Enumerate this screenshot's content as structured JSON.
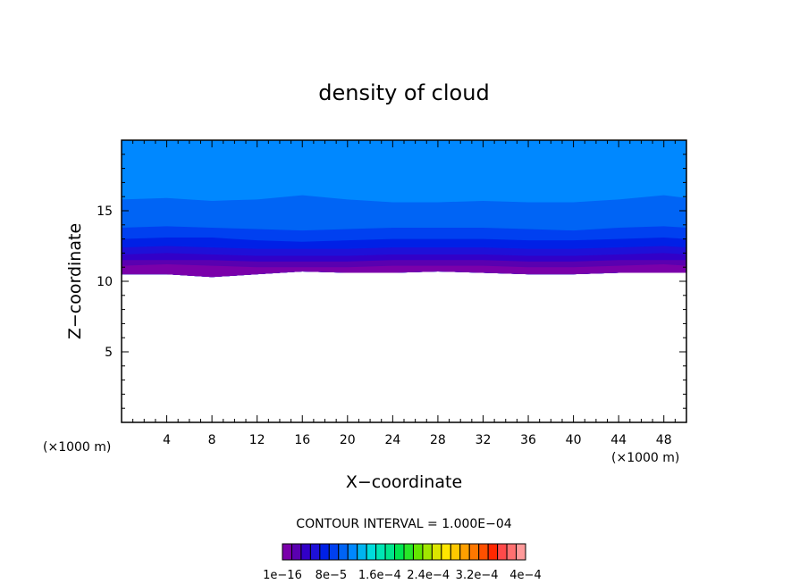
{
  "chart_data": {
    "type": "contour",
    "title": "density of cloud",
    "xlabel": "X−coordinate",
    "ylabel": "Z−coordinate",
    "x_unit": "(×1000 m)",
    "y_unit": "(×1000 m)",
    "xlim": [
      0,
      50
    ],
    "ylim": [
      0,
      20
    ],
    "x_ticks": [
      4,
      8,
      12,
      16,
      20,
      24,
      28,
      32,
      36,
      40,
      44,
      48
    ],
    "x_tick_labels": [
      "4",
      "8",
      "12",
      "16",
      "20",
      "24",
      "28",
      "32",
      "36",
      "40",
      "44",
      "48"
    ],
    "y_ticks": [
      5,
      10,
      15
    ],
    "y_tick_labels": [
      "5",
      "10",
      "15"
    ],
    "contour_interval_text": "CONTOUR INTERVAL = 1.000E−04",
    "colorbar": {
      "colors": [
        "#7a00aa",
        "#5a00b0",
        "#3200c8",
        "#1e10d8",
        "#0020e6",
        "#0040f0",
        "#0064f5",
        "#0088ff",
        "#00b4f0",
        "#00dcdc",
        "#00e6b4",
        "#00e68c",
        "#00e650",
        "#28e628",
        "#64e600",
        "#a0e600",
        "#dce600",
        "#ffe600",
        "#ffc800",
        "#ffa000",
        "#ff7800",
        "#ff5000",
        "#ff2800",
        "#ff4a4a",
        "#ff7070",
        "#ff9a9a"
      ],
      "labels": [
        "1e−16",
        "8e−5",
        "1.6e−4",
        "2.4e−4",
        "3.2e−4",
        "4e−4"
      ]
    },
    "bands": [
      {
        "color": "#0088ff",
        "upper": [
          20,
          20,
          20,
          20,
          20,
          20,
          20,
          20,
          20,
          20,
          20,
          20,
          20,
          20
        ]
      },
      {
        "color": "#0064f5",
        "upper": [
          15.8,
          15.9,
          15.7,
          15.8,
          16.1,
          15.8,
          15.6,
          15.6,
          15.7,
          15.6,
          15.6,
          15.8,
          16.1,
          15.9
        ]
      },
      {
        "color": "#0040f0",
        "upper": [
          13.8,
          13.9,
          13.8,
          13.7,
          13.6,
          13.7,
          13.8,
          13.8,
          13.8,
          13.7,
          13.6,
          13.8,
          13.9,
          13.8
        ]
      },
      {
        "color": "#0020e6",
        "upper": [
          13.0,
          13.1,
          13.1,
          12.9,
          12.8,
          12.9,
          13.0,
          13.0,
          13.0,
          12.9,
          12.9,
          13.0,
          13.1,
          13.0
        ]
      },
      {
        "color": "#1e10d8",
        "upper": [
          12.4,
          12.5,
          12.4,
          12.3,
          12.3,
          12.3,
          12.4,
          12.4,
          12.4,
          12.3,
          12.3,
          12.4,
          12.5,
          12.4
        ]
      },
      {
        "color": "#3200c8",
        "upper": [
          11.9,
          12.0,
          11.9,
          11.8,
          11.8,
          11.8,
          11.9,
          11.9,
          11.9,
          11.8,
          11.8,
          11.9,
          12.0,
          11.9
        ]
      },
      {
        "color": "#5a00b0",
        "upper": [
          11.5,
          11.5,
          11.5,
          11.4,
          11.4,
          11.4,
          11.5,
          11.5,
          11.5,
          11.4,
          11.4,
          11.5,
          11.5,
          11.5
        ]
      },
      {
        "color": "#7a00aa",
        "upper": [
          11.1,
          11.2,
          11.1,
          11.0,
          11.0,
          11.0,
          11.1,
          11.1,
          11.1,
          11.0,
          11.0,
          11.1,
          11.2,
          11.1
        ]
      }
    ],
    "band_x": [
      0,
      4,
      8,
      12,
      16,
      20,
      24,
      28,
      32,
      36,
      40,
      44,
      48,
      50
    ],
    "cloud_base": [
      10.5,
      10.5,
      10.3,
      10.5,
      10.7,
      10.6,
      10.6,
      10.7,
      10.6,
      10.5,
      10.5,
      10.6,
      10.6,
      10.6
    ]
  }
}
